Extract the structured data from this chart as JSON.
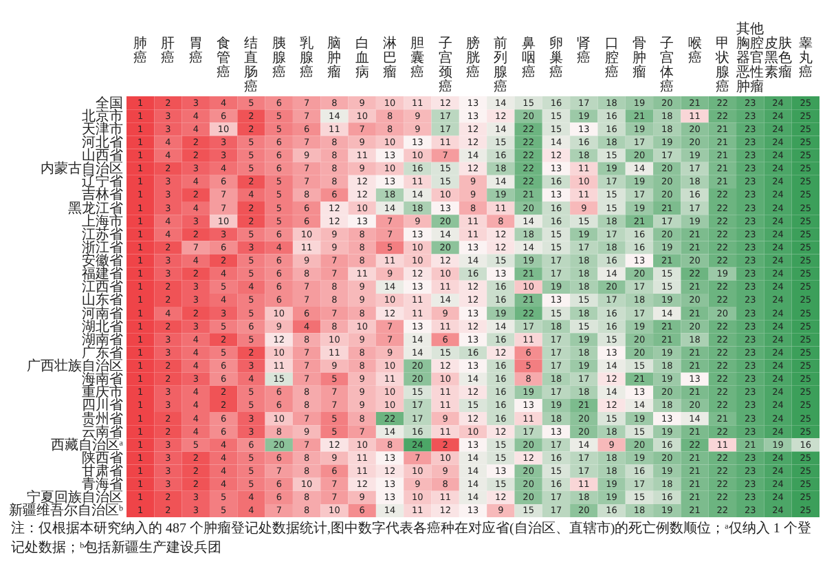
{
  "chart_data": {
    "type": "heatmap",
    "data_labels": true,
    "categories": [
      "肺癌",
      "肝癌",
      "胃癌",
      "食管癌",
      "结直肠癌",
      "胰腺癌",
      "乳腺癌",
      "脑肿瘤",
      "白血病",
      "淋巴瘤",
      "胆囊癌",
      "子宫颈癌",
      "膀胱癌",
      "前列腺癌",
      "鼻咽癌",
      "卵巢癌",
      "肾癌",
      "口腔癌",
      "骨肿瘤",
      "子宫体癌",
      "喉癌",
      "甲状腺癌",
      "其他胸腔器官恶性肿瘤",
      "皮肤黑色素瘤",
      "睾丸癌"
    ],
    "y_categories": [
      "全国",
      "北京市",
      "天津市",
      "河北省",
      "山西省",
      "内蒙古自治区",
      "辽宁省",
      "吉林省",
      "黑龙江省",
      "上海市",
      "江苏省",
      "浙江省",
      "安徽省",
      "福建省",
      "江西省",
      "山东省",
      "河南省",
      "湖北省",
      "湖南省",
      "广东省",
      "广西壮族自治区",
      "海南省",
      "重庆市",
      "四川省",
      "贵州省",
      "云南省",
      "西藏自治区ᵃ",
      "陕西省",
      "甘肃省",
      "青海省",
      "宁夏回族自治区",
      "新疆维吾尔自治区ᵇ"
    ],
    "cells": [
      [
        1,
        2,
        3,
        4,
        5,
        6,
        7,
        8,
        9,
        10,
        11,
        12,
        13,
        14,
        15,
        16,
        17,
        18,
        19,
        20,
        21,
        22,
        23,
        24,
        25
      ],
      [
        1,
        3,
        4,
        6,
        2,
        5,
        7,
        14,
        10,
        8,
        9,
        17,
        13,
        12,
        20,
        15,
        19,
        16,
        21,
        18,
        11,
        22,
        23,
        24,
        25
      ],
      [
        1,
        3,
        4,
        10,
        2,
        5,
        6,
        11,
        7,
        8,
        9,
        17,
        12,
        14,
        22,
        15,
        13,
        16,
        19,
        18,
        20,
        21,
        23,
        24,
        25
      ],
      [
        1,
        4,
        2,
        3,
        5,
        6,
        7,
        8,
        9,
        10,
        13,
        11,
        12,
        15,
        22,
        14,
        16,
        18,
        17,
        19,
        20,
        21,
        23,
        24,
        25
      ],
      [
        1,
        4,
        2,
        3,
        5,
        6,
        9,
        8,
        11,
        13,
        10,
        7,
        14,
        16,
        22,
        12,
        18,
        15,
        20,
        17,
        19,
        21,
        23,
        24,
        25
      ],
      [
        1,
        2,
        3,
        4,
        5,
        6,
        7,
        8,
        9,
        10,
        16,
        15,
        12,
        18,
        22,
        13,
        11,
        19,
        14,
        20,
        17,
        21,
        23,
        24,
        25
      ],
      [
        1,
        3,
        4,
        6,
        2,
        5,
        7,
        8,
        12,
        13,
        11,
        15,
        9,
        14,
        22,
        16,
        10,
        17,
        19,
        20,
        18,
        21,
        23,
        24,
        25
      ],
      [
        1,
        3,
        2,
        7,
        4,
        5,
        8,
        6,
        12,
        18,
        14,
        10,
        9,
        19,
        21,
        13,
        11,
        15,
        17,
        20,
        16,
        22,
        23,
        24,
        25
      ],
      [
        1,
        3,
        4,
        7,
        2,
        5,
        6,
        12,
        10,
        14,
        18,
        13,
        8,
        11,
        20,
        16,
        9,
        15,
        19,
        21,
        17,
        22,
        23,
        24,
        25
      ],
      [
        1,
        4,
        3,
        10,
        2,
        5,
        6,
        12,
        13,
        7,
        9,
        20,
        11,
        8,
        14,
        16,
        15,
        18,
        21,
        17,
        19,
        22,
        23,
        24,
        25
      ],
      [
        1,
        4,
        2,
        3,
        5,
        6,
        10,
        9,
        8,
        7,
        13,
        14,
        11,
        12,
        18,
        15,
        19,
        17,
        16,
        20,
        21,
        22,
        23,
        24,
        25
      ],
      [
        1,
        2,
        7,
        6,
        3,
        4,
        11,
        9,
        8,
        5,
        10,
        20,
        13,
        12,
        14,
        15,
        17,
        18,
        16,
        19,
        21,
        22,
        23,
        24,
        25
      ],
      [
        1,
        3,
        4,
        2,
        5,
        6,
        9,
        7,
        8,
        11,
        10,
        12,
        14,
        15,
        19,
        17,
        18,
        16,
        13,
        21,
        20,
        22,
        23,
        24,
        25
      ],
      [
        1,
        3,
        2,
        4,
        5,
        6,
        8,
        7,
        11,
        9,
        12,
        10,
        16,
        13,
        21,
        17,
        18,
        14,
        20,
        15,
        22,
        19,
        23,
        24,
        25
      ],
      [
        1,
        2,
        3,
        5,
        4,
        6,
        7,
        8,
        9,
        14,
        13,
        11,
        12,
        16,
        10,
        19,
        18,
        20,
        17,
        15,
        21,
        22,
        23,
        24,
        25
      ],
      [
        1,
        2,
        3,
        4,
        5,
        6,
        7,
        8,
        9,
        10,
        11,
        14,
        12,
        16,
        21,
        13,
        15,
        17,
        18,
        19,
        20,
        22,
        23,
        24,
        25
      ],
      [
        1,
        4,
        2,
        3,
        5,
        10,
        6,
        7,
        8,
        12,
        11,
        9,
        13,
        19,
        22,
        15,
        18,
        16,
        17,
        14,
        21,
        20,
        23,
        24,
        25
      ],
      [
        1,
        2,
        3,
        5,
        6,
        9,
        4,
        8,
        10,
        7,
        13,
        11,
        12,
        14,
        17,
        18,
        15,
        16,
        19,
        21,
        20,
        22,
        23,
        24,
        25
      ],
      [
        1,
        3,
        4,
        2,
        5,
        12,
        8,
        10,
        9,
        7,
        14,
        6,
        13,
        16,
        11,
        17,
        19,
        15,
        20,
        21,
        18,
        22,
        23,
        24,
        25
      ],
      [
        1,
        3,
        4,
        5,
        2,
        10,
        7,
        11,
        8,
        9,
        14,
        15,
        16,
        12,
        6,
        17,
        18,
        13,
        20,
        19,
        21,
        22,
        23,
        24,
        25
      ],
      [
        1,
        2,
        4,
        6,
        3,
        11,
        7,
        9,
        8,
        10,
        20,
        12,
        13,
        16,
        5,
        17,
        19,
        14,
        15,
        18,
        21,
        22,
        23,
        24,
        25
      ],
      [
        1,
        2,
        3,
        6,
        4,
        15,
        7,
        5,
        9,
        11,
        20,
        10,
        14,
        16,
        8,
        18,
        17,
        12,
        21,
        19,
        13,
        22,
        23,
        24,
        25
      ],
      [
        1,
        3,
        4,
        2,
        5,
        6,
        8,
        7,
        9,
        10,
        15,
        11,
        12,
        16,
        19,
        17,
        18,
        14,
        13,
        20,
        21,
        22,
        23,
        24,
        25
      ],
      [
        1,
        3,
        4,
        2,
        5,
        6,
        8,
        7,
        9,
        10,
        17,
        11,
        15,
        16,
        13,
        19,
        21,
        12,
        14,
        18,
        20,
        22,
        23,
        24,
        25
      ],
      [
        1,
        2,
        4,
        6,
        3,
        10,
        7,
        5,
        8,
        22,
        17,
        9,
        12,
        16,
        11,
        18,
        20,
        15,
        19,
        13,
        14,
        21,
        23,
        24,
        25
      ],
      [
        1,
        2,
        4,
        6,
        3,
        8,
        9,
        5,
        7,
        14,
        16,
        11,
        10,
        12,
        17,
        13,
        20,
        18,
        15,
        19,
        21,
        22,
        23,
        24,
        25
      ],
      [
        1,
        3,
        5,
        4,
        6,
        20,
        7,
        12,
        10,
        8,
        24,
        2,
        13,
        15,
        20,
        17,
        14,
        9,
        20,
        16,
        22,
        11,
        21,
        19,
        16
      ],
      [
        1,
        3,
        2,
        4,
        5,
        6,
        8,
        9,
        11,
        13,
        7,
        10,
        14,
        15,
        12,
        16,
        17,
        18,
        19,
        20,
        21,
        22,
        23,
        24,
        25
      ],
      [
        1,
        3,
        2,
        4,
        5,
        7,
        8,
        6,
        11,
        12,
        10,
        9,
        14,
        13,
        20,
        15,
        17,
        18,
        16,
        19,
        21,
        22,
        23,
        24,
        25
      ],
      [
        1,
        3,
        2,
        4,
        5,
        6,
        10,
        7,
        12,
        13,
        9,
        8,
        14,
        15,
        20,
        16,
        11,
        19,
        17,
        18,
        21,
        22,
        23,
        24,
        25
      ],
      [
        1,
        2,
        3,
        5,
        4,
        6,
        8,
        7,
        9,
        13,
        10,
        11,
        14,
        12,
        20,
        17,
        18,
        19,
        15,
        16,
        21,
        22,
        23,
        24,
        25
      ],
      [
        1,
        2,
        3,
        5,
        4,
        7,
        8,
        10,
        6,
        14,
        11,
        12,
        13,
        9,
        15,
        17,
        20,
        16,
        18,
        19,
        21,
        22,
        23,
        24,
        25
      ]
    ],
    "annotations": [
      "注：仅根据本研究纳入的 487 个肿瘤登记处数据统计,图中数字代表各癌种在对应省(自治区、直辖市)的死亡例数顺位；ᵃ仅纳入 1 个登记处数据；ᵇ包括新疆生产建设兵团"
    ]
  }
}
